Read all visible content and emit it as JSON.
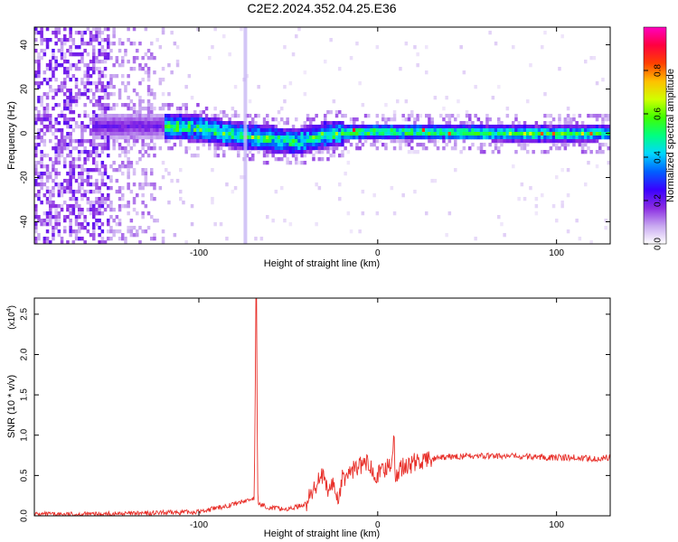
{
  "title": "C2E2.2024.352.04.25.E36",
  "chart_data": [
    {
      "type": "heatmap",
      "xlabel": "Height of straight line (km)",
      "ylabel": "Frequency (Hz)",
      "xlim": [
        -192,
        130
      ],
      "ylim": [
        -50,
        48
      ],
      "xticks": [
        {
          "v": -100,
          "label": "-100"
        },
        {
          "v": 0,
          "label": "0"
        },
        {
          "v": 100,
          "label": "100"
        }
      ],
      "yticks": [
        {
          "v": -40,
          "label": "-40"
        },
        {
          "v": -20,
          "label": "-20"
        },
        {
          "v": 0,
          "label": "0"
        },
        {
          "v": 20,
          "label": "20"
        },
        {
          "v": 40,
          "label": "40"
        }
      ],
      "colorbar": {
        "label": "Normalized spectral amplitude",
        "range": [
          0,
          1
        ],
        "ticks": [
          {
            "v": 0.0,
            "label": "0.0"
          },
          {
            "v": 0.2,
            "label": "0.2"
          },
          {
            "v": 0.4,
            "label": "0.4"
          },
          {
            "v": 0.6,
            "label": "0.6"
          },
          {
            "v": 0.8,
            "label": "0.8"
          }
        ],
        "colormap": [
          "#ffffff",
          "#c8a8f0",
          "#8a2be2",
          "#3a00ff",
          "#0060ff",
          "#00d8ff",
          "#00ff80",
          "#40ff00",
          "#d0ff00",
          "#ffc000",
          "#ff4000",
          "#ff0040",
          "#ff00c0"
        ]
      },
      "ridge": [
        [
          -150,
          4
        ],
        [
          -120,
          4
        ],
        [
          -100,
          3
        ],
        [
          -80,
          0
        ],
        [
          -60,
          -2
        ],
        [
          -45,
          -3
        ],
        [
          -30,
          0
        ],
        [
          -20,
          1
        ],
        [
          0,
          1.5
        ],
        [
          50,
          1
        ],
        [
          100,
          0.5
        ],
        [
          130,
          1
        ]
      ],
      "vertical_line_x": -74
    },
    {
      "type": "line",
      "xlabel": "Height of straight line (km)",
      "ylabel": "SNR (10 * v/v)",
      "yscale_label": "(x10",
      "yscale_exp": "4",
      "xlim": [
        -192,
        130
      ],
      "ylim": [
        0,
        2.7
      ],
      "xticks": [
        {
          "v": -100,
          "label": "-100"
        },
        {
          "v": 0,
          "label": "0"
        },
        {
          "v": 100,
          "label": "100"
        }
      ],
      "yticks": [
        {
          "v": 0.0,
          "label": "0.0"
        },
        {
          "v": 0.5,
          "label": "0.5"
        },
        {
          "v": 1.0,
          "label": "1.0"
        },
        {
          "v": 1.5,
          "label": "1.5"
        },
        {
          "v": 2.0,
          "label": "2.0"
        },
        {
          "v": 2.5,
          "label": "2.5"
        }
      ],
      "series": [
        {
          "color": "#e8302a",
          "x": [
            -192,
            -160,
            -130,
            -100,
            -85,
            -75,
            -69,
            -68,
            -67,
            -60,
            -50,
            -40,
            -35,
            -32,
            -28,
            -25,
            -22,
            -20,
            -15,
            -12,
            -10,
            -5,
            0,
            5,
            8,
            9,
            10,
            12,
            15,
            20,
            30,
            40,
            50,
            70,
            90,
            110,
            125,
            130
          ],
          "values": [
            0.02,
            0.02,
            0.03,
            0.05,
            0.12,
            0.18,
            0.22,
            2.72,
            0.15,
            0.1,
            0.08,
            0.15,
            0.35,
            0.55,
            0.3,
            0.4,
            0.2,
            0.45,
            0.55,
            0.6,
            0.62,
            0.65,
            0.5,
            0.6,
            0.7,
            1.03,
            0.4,
            0.6,
            0.6,
            0.66,
            0.7,
            0.73,
            0.74,
            0.74,
            0.73,
            0.72,
            0.71,
            0.73
          ]
        }
      ]
    }
  ]
}
